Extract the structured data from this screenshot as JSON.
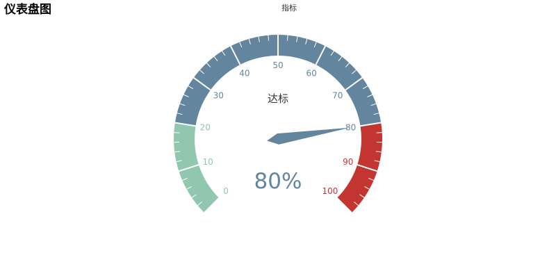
{
  "page_title": "仪表盘图",
  "colors": {
    "band_low": "#91c7ae",
    "band_mid": "#63869e",
    "band_high": "#c23531",
    "pointer": "#63869e",
    "detail_text": "#63869e",
    "series_label_text": "#333333",
    "tick": "#ffffff",
    "separator": "#ffffff"
  },
  "chart_data": {
    "type": "gauge",
    "title": "指标",
    "series": [
      {
        "name": "达标",
        "value": 80,
        "detail": "80%",
        "min": 0,
        "max": 100,
        "start_angle_deg": 225,
        "end_angle_deg": -45,
        "split_number": 10,
        "minor_ticks_per_split": 5,
        "tick_labels": [
          "0",
          "10",
          "20",
          "30",
          "40",
          "50",
          "60",
          "70",
          "80",
          "90",
          "100"
        ],
        "bands": [
          {
            "to_fraction": 0.2,
            "color_key": "band_low"
          },
          {
            "to_fraction": 0.8,
            "color_key": "band_mid"
          },
          {
            "to_fraction": 1.0,
            "color_key": "band_high"
          }
        ]
      }
    ]
  }
}
